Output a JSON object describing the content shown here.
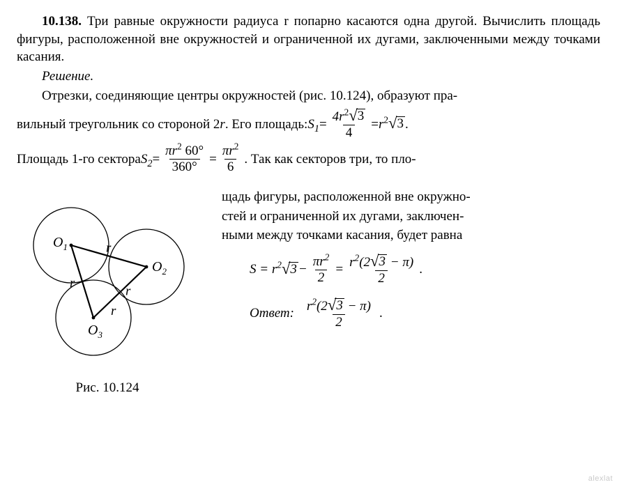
{
  "problem": {
    "number": "10.138.",
    "statement": "Три равные окружности радиуса r попарно касаются одна другой. Вычислить площадь фигуры, расположенной вне окружностей и ограниченной их дугами, заключенными между точками касания."
  },
  "solution": {
    "heading": "Решение.",
    "p1_prefix": "Отрезки, соединяющие центры окружностей (рис. 10.124), образуют пра-",
    "p2_prefix": "вильный треугольник со стороной 2",
    "p2_var": "r",
    "p2_mid": " . Его площадь: ",
    "S1_lhs": "S",
    "S1_sub": "1",
    "eq": " = ",
    "S1_num_a": "4r",
    "S1_num_sq": "2",
    "S1_num_rad": "3",
    "S1_den": "4",
    "S1_tail_a": "r",
    "S1_tail_sq": "2",
    "S1_tail_rad": "3",
    "p2_tail": " .",
    "p3_prefix": "Площадь 1-го сектора ",
    "S2_lhs": "S",
    "S2_sub": "2",
    "S2_num_a": "πr",
    "S2_num_sq": "2",
    "S2_num_b": " 60°",
    "S2_den": "360°",
    "S2_num2_a": "πr",
    "S2_num2_sq": "2",
    "S2_den2": "6",
    "p3_tail": " . Так как секторов три, то пло-",
    "p4a": "щадь фигуры, расположенной вне окружно-",
    "p4b": "стей и ограниченной их дугами, заключен-",
    "p4c": "ными между точками касания, будет равна",
    "Sfinal_lhs": "S = r",
    "Sfinal_sq": "2",
    "Sfinal_rad": "3",
    "Sfinal_minus": " − ",
    "Sfinal_f1_num_a": "πr",
    "Sfinal_f1_num_sq": "2",
    "Sfinal_f1_den": "2",
    "Sfinal_f2_num_a": "r",
    "Sfinal_f2_num_sq": "2",
    "Sfinal_f2_num_b": "(2",
    "Sfinal_f2_num_rad": "3",
    "Sfinal_f2_num_c": " − π)",
    "Sfinal_f2_den": "2",
    "Sfinal_period": ".",
    "answer_label": "Ответ:",
    "ans_num_a": "r",
    "ans_num_sq": "2",
    "ans_num_b": "(2",
    "ans_num_rad": "3",
    "ans_num_c": " − π)",
    "ans_den": "2",
    "ans_period": "."
  },
  "figure": {
    "caption": "Рис. 10.124",
    "labels": {
      "O1": "O",
      "O1s": "1",
      "O2": "O",
      "O2s": "2",
      "O3": "O",
      "O3s": "3",
      "r": "r"
    },
    "geometry": {
      "circle_radius": 54,
      "centers": {
        "O1": [
          78,
          82
        ],
        "O2": [
          186,
          113
        ],
        "O3": [
          110,
          186
        ]
      },
      "stroke_color": "#000000",
      "stroke_width": 1.3,
      "triangle_stroke_width": 2.2
    }
  },
  "watermark": "alexlat"
}
